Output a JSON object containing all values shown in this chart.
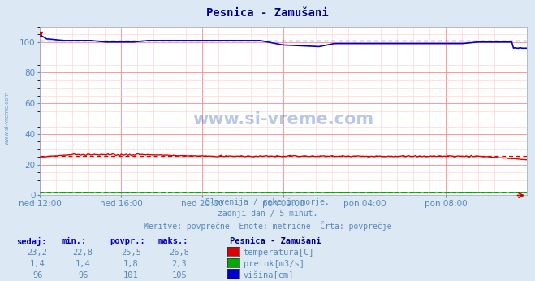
{
  "title": "Pesnica - Zamušani",
  "bg_color": "#dce9f5",
  "plot_bg_color": "#ffffff",
  "x_labels": [
    "ned 12:00",
    "ned 16:00",
    "ned 20:00",
    "pon 00:00",
    "pon 04:00",
    "pon 08:00"
  ],
  "n_points": 289,
  "ylim": [
    0,
    110
  ],
  "yticks": [
    20,
    40,
    60,
    80,
    100
  ],
  "grid_major_color": "#ff8888",
  "grid_minor_color": "#ffcccc",
  "temp_color": "#dd0000",
  "pretok_color": "#00aa00",
  "visina_color": "#0000cc",
  "temp_avg": 25.5,
  "temp_min": 22.8,
  "temp_max": 26.8,
  "temp_now": "23,2",
  "temp_min_s": "22,8",
  "temp_avg_s": "25,5",
  "temp_max_s": "26,8",
  "pretok_now": "1,4",
  "pretok_min_s": "1,4",
  "pretok_avg_s": "1,8",
  "pretok_max_s": "2,3",
  "pretok_avg": 1.8,
  "visina_avg": 101,
  "visina_min": 96,
  "visina_max": 105,
  "visina_now_s": "96",
  "visina_min_s": "96",
  "visina_avg_s": "101",
  "visina_max_s": "105",
  "subtitle1": "Slovenija / reke in morje.",
  "subtitle2": "zadnji dan / 5 minut.",
  "subtitle3": "Meritve: povprečne  Enote: metrične  Črta: povprečje",
  "legend_title": "Pesnica - Zamušani",
  "watermark": "www.si-vreme.com",
  "label_color": "#5588bb",
  "header_color": "#0000bb",
  "title_color": "#000088",
  "col_headers": [
    "sedaj:",
    "min.:",
    "povpr.:",
    "maks.:"
  ],
  "legend_labels": [
    "temperatura[C]",
    "pretok[m3/s]",
    "višina[cm]"
  ]
}
